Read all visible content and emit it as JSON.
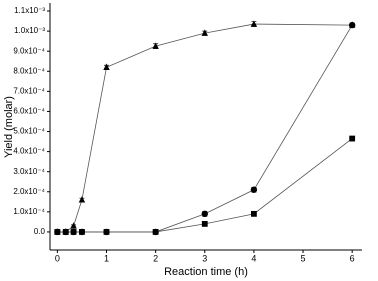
{
  "chart_data": {
    "type": "line",
    "x_label": "Reaction time (h)",
    "y_label": "Yield (molar)",
    "x": [
      0,
      0.17,
      0.33,
      0.5,
      1,
      2,
      3,
      4,
      6
    ],
    "series": [
      {
        "marker": "triangle",
        "color": "#000000",
        "line_color": "#555555",
        "values": [
          0,
          0,
          3e-05,
          0.00016,
          0.00082,
          0.000925,
          0.00099,
          0.001035,
          0.00103
        ],
        "errors": [
          5e-06,
          5e-06,
          5e-06,
          8e-06,
          1e-05,
          1.2e-05,
          1e-05,
          1.2e-05,
          8e-06
        ]
      },
      {
        "marker": "circle",
        "color": "#000000",
        "line_color": "#555555",
        "values": [
          0,
          0,
          0,
          0,
          0,
          0,
          9e-05,
          0.00021,
          0.00103
        ],
        "errors": [
          8e-06,
          8e-06,
          8e-06,
          8e-06,
          1e-05,
          1e-05,
          1.2e-05,
          1.2e-05,
          1e-05
        ]
      },
      {
        "marker": "square",
        "color": "#000000",
        "line_color": "#555555",
        "values": [
          0,
          0,
          0,
          0,
          0,
          0,
          4e-05,
          9e-05,
          0.000465
        ],
        "errors": [
          6e-06,
          6e-06,
          6e-06,
          6e-06,
          8e-06,
          8e-06,
          8e-06,
          1e-05,
          6e-06
        ]
      }
    ],
    "xlim": [
      -0.15,
      6.2
    ],
    "ylim": [
      -9e-05,
      0.00114
    ],
    "xticks": [
      0,
      1,
      2,
      3,
      4,
      5,
      6
    ],
    "yticks": [
      {
        "value": 0,
        "label": "0.0"
      },
      {
        "value": 0.0001,
        "label": "1.0x10⁻⁴"
      },
      {
        "value": 0.0002,
        "label": "2.0x10⁻⁴"
      },
      {
        "value": 0.0003,
        "label": "3.0x10⁻⁴"
      },
      {
        "value": 0.0004,
        "label": "4.0x10⁻⁴"
      },
      {
        "value": 0.0005,
        "label": "5.0x10⁻⁴"
      },
      {
        "value": 0.0006,
        "label": "6.0x10⁻⁴"
      },
      {
        "value": 0.0007,
        "label": "7.0x10⁻⁴"
      },
      {
        "value": 0.0008,
        "label": "8.0x10⁻⁴"
      },
      {
        "value": 0.0009,
        "label": "9.0x10⁻⁴"
      },
      {
        "value": 0.001,
        "label": "1.0x10⁻³"
      },
      {
        "value": 0.0011,
        "label": "1.1x10⁻³"
      }
    ],
    "grid": false
  }
}
